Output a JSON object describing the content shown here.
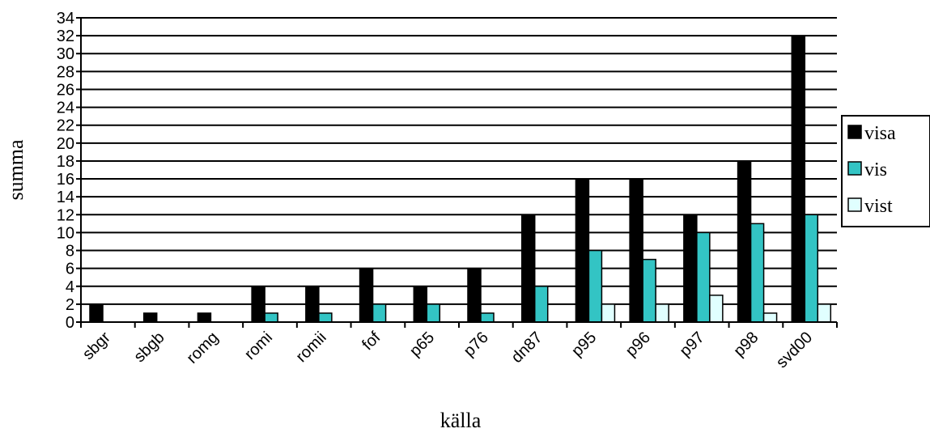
{
  "chart_data": {
    "type": "bar",
    "xlabel": "källa",
    "ylabel": "summa",
    "ylim": [
      0,
      34
    ],
    "ytick_step": 2,
    "grid": "horizontal",
    "legend_position": "right",
    "categories": [
      "sbgr",
      "sbgb",
      "romg",
      "romi",
      "romii",
      "fof",
      "p65",
      "p76",
      "dn87",
      "p95",
      "p96",
      "p97",
      "p98",
      "svd00"
    ],
    "series": [
      {
        "name": "visa",
        "color": "#000000",
        "values": [
          2,
          1,
          1,
          4,
          4,
          6,
          4,
          6,
          12,
          16,
          16,
          12,
          18,
          32
        ]
      },
      {
        "name": "vis",
        "color": "#33c4c4",
        "values": [
          0,
          0,
          0,
          1,
          1,
          2,
          2,
          1,
          4,
          8,
          7,
          10,
          11,
          12
        ]
      },
      {
        "name": "vist",
        "color": "#e0ffff",
        "values": [
          0,
          0,
          0,
          0,
          0,
          0,
          0,
          0,
          0,
          2,
          2,
          3,
          1,
          2
        ]
      }
    ]
  }
}
